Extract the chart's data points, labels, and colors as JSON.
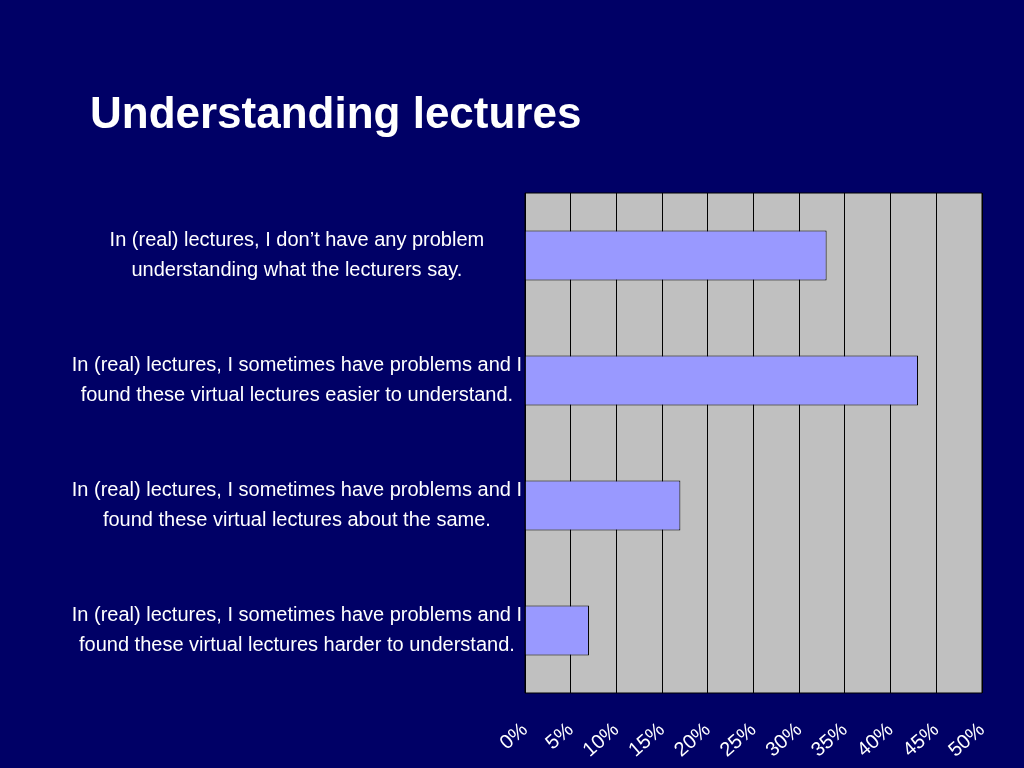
{
  "chart_data": {
    "type": "bar",
    "orientation": "horizontal",
    "title": "Understanding lectures",
    "categories": [
      "In (real) lectures, I don’t have any problem understanding what the lecturers say.",
      "In (real) lectures, I sometimes have problems and I found these virtual lectures easier to understand.",
      "In (real) lectures, I sometimes have problems and I found these virtual lectures about the same.",
      "In (real) lectures, I sometimes have problems and I found these virtual lectures harder to understand."
    ],
    "values": [
      33,
      43,
      17,
      7
    ],
    "color": "#9999ff",
    "xlim": [
      0,
      50
    ],
    "xticks": [
      {
        "value": 0,
        "label": "0%"
      },
      {
        "value": 5,
        "label": "5%"
      },
      {
        "value": 10,
        "label": "10%"
      },
      {
        "value": 15,
        "label": "15%"
      },
      {
        "value": 20,
        "label": "20%"
      },
      {
        "value": 25,
        "label": "25%"
      },
      {
        "value": 30,
        "label": "30%"
      },
      {
        "value": 35,
        "label": "35%"
      },
      {
        "value": 40,
        "label": "40%"
      },
      {
        "value": 45,
        "label": "45%"
      },
      {
        "value": 50,
        "label": "50%"
      }
    ],
    "grid": "x",
    "legend": false
  }
}
